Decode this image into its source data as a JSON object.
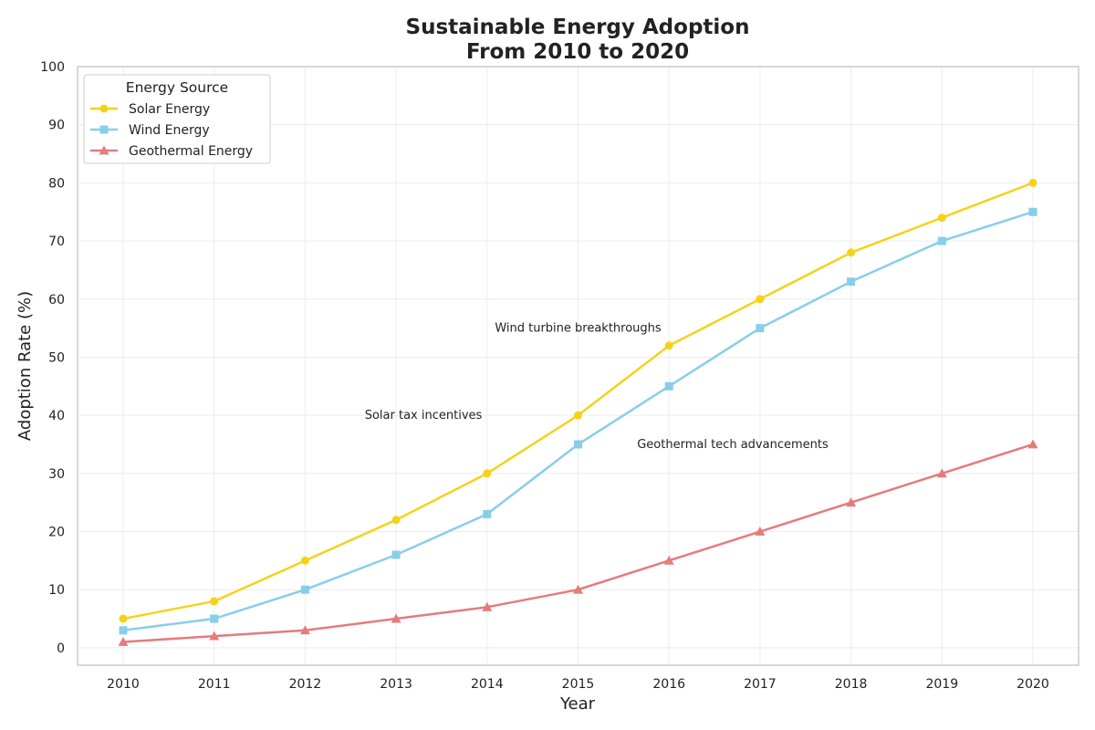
{
  "chart_data": {
    "type": "line",
    "title_lines": [
      "Sustainable Energy Adoption",
      "From 2010 to 2020"
    ],
    "xlabel": "Year",
    "ylabel": "Adoption Rate (%)",
    "categories": [
      "2010",
      "2011",
      "2012",
      "2013",
      "2014",
      "2015",
      "2016",
      "2017",
      "2018",
      "2019",
      "2020"
    ],
    "ylim": [
      -3,
      100
    ],
    "yticks": [
      0,
      10,
      20,
      30,
      40,
      50,
      60,
      70,
      80,
      90,
      100
    ],
    "grid": true,
    "legend": {
      "title": "Energy Source",
      "position": "top-left"
    },
    "series": [
      {
        "name": "Solar Energy",
        "color": "#F5D21A",
        "marker": "circle",
        "values": [
          5,
          8,
          15,
          22,
          30,
          40,
          52,
          60,
          68,
          74,
          80
        ]
      },
      {
        "name": "Wind Energy",
        "color": "#87CEEB",
        "marker": "square",
        "values": [
          3,
          5,
          10,
          16,
          23,
          35,
          45,
          55,
          63,
          70,
          75
        ]
      },
      {
        "name": "Geothermal Energy",
        "color": "#E57B7B",
        "marker": "triangle",
        "values": [
          1,
          2,
          3,
          5,
          7,
          10,
          15,
          20,
          25,
          30,
          35
        ]
      }
    ],
    "annotations": [
      {
        "text": "Solar tax incentives",
        "x": 2013.3,
        "y": 40
      },
      {
        "text": "Wind turbine breakthroughs",
        "x": 2015.0,
        "y": 55
      },
      {
        "text": "Geothermal tech advancements",
        "x": 2016.7,
        "y": 35
      }
    ]
  }
}
